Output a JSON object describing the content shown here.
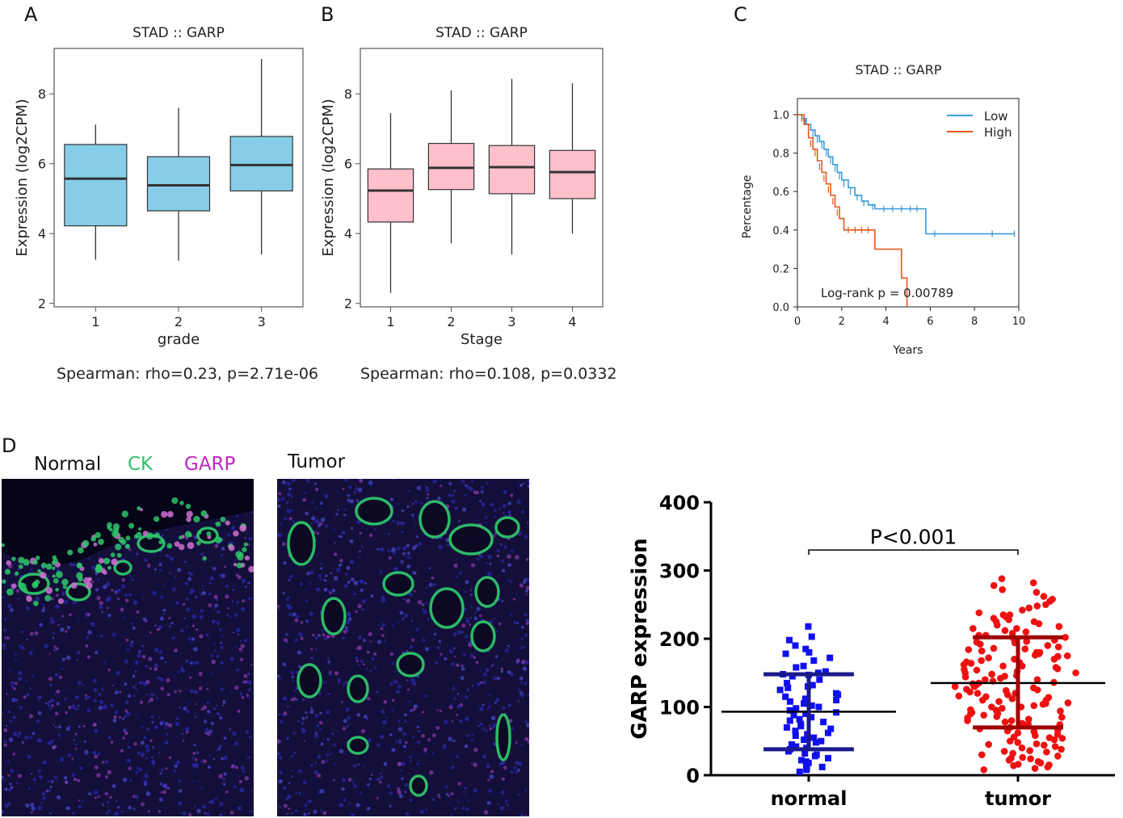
{
  "panels": {
    "a": "A",
    "b": "B",
    "c": "C",
    "d": "D"
  },
  "colors": {
    "box_a": "#87cde8",
    "box_b": "#ffc0cb",
    "km_low": "#3a9ad9",
    "km_high": "#e8581c",
    "ck": "#2ec46a",
    "garp": "#c026c0",
    "normal_pts": "#1010ee",
    "tumor_pts": "#ee1111"
  },
  "panel_a": {
    "caption": "Spearman: rho=0.23, p=2.71e-06",
    "chart_data": {
      "type": "box",
      "title": "STAD ::  GARP",
      "xlabel": "grade",
      "ylabel": "Expression (log2CPM)",
      "ylim": [
        1.9,
        9.3
      ],
      "yticks": [
        2,
        4,
        6,
        8
      ],
      "categories": [
        "1",
        "2",
        "3"
      ],
      "boxes": [
        {
          "min": 3.25,
          "q1": 4.22,
          "median": 5.57,
          "q3": 6.55,
          "max": 7.12
        },
        {
          "min": 3.22,
          "q1": 4.65,
          "median": 5.38,
          "q3": 6.2,
          "max": 7.6
        },
        {
          "min": 3.4,
          "q1": 5.22,
          "median": 5.96,
          "q3": 6.78,
          "max": 9.0
        }
      ]
    }
  },
  "panel_b": {
    "caption": "Spearman: rho=0.108, p=0.0332",
    "chart_data": {
      "type": "box",
      "title": "STAD :: GARP",
      "xlabel": "Stage",
      "ylabel": "Expression (log2CPM)",
      "ylim": [
        1.9,
        9.3
      ],
      "yticks": [
        2,
        4,
        6,
        8
      ],
      "categories": [
        "1",
        "2",
        "3",
        "4"
      ],
      "boxes": [
        {
          "min": 2.3,
          "q1": 4.33,
          "median": 5.23,
          "q3": 5.85,
          "max": 7.45
        },
        {
          "min": 3.72,
          "q1": 5.26,
          "median": 5.88,
          "q3": 6.58,
          "max": 8.1
        },
        {
          "min": 3.4,
          "q1": 5.14,
          "median": 5.9,
          "q3": 6.52,
          "max": 8.43
        },
        {
          "min": 4.0,
          "q1": 5.0,
          "median": 5.76,
          "q3": 6.38,
          "max": 8.3
        }
      ]
    }
  },
  "panel_c": {
    "chart_data": {
      "type": "line",
      "title": "STAD :: GARP",
      "xlabel": "Years",
      "ylabel": "Percentage",
      "xlim": [
        0,
        10
      ],
      "ylim": [
        0,
        1
      ],
      "xticks": [
        0,
        2,
        4,
        6,
        8,
        10
      ],
      "yticks": [
        "0.0",
        "0.2",
        "0.4",
        "0.6",
        "0.8",
        "1.0"
      ],
      "legend": [
        "Low",
        "High"
      ],
      "annotation": "Log-rank p = 0.00789",
      "series": [
        {
          "name": "Low",
          "steps": [
            [
              0,
              1.0
            ],
            [
              0.2,
              0.98
            ],
            [
              0.4,
              0.95
            ],
            [
              0.6,
              0.92
            ],
            [
              0.8,
              0.89
            ],
            [
              1.0,
              0.86
            ],
            [
              1.2,
              0.82
            ],
            [
              1.4,
              0.78
            ],
            [
              1.6,
              0.74
            ],
            [
              1.8,
              0.7
            ],
            [
              2.0,
              0.66
            ],
            [
              2.3,
              0.62
            ],
            [
              2.6,
              0.58
            ],
            [
              2.9,
              0.55
            ],
            [
              3.2,
              0.53
            ],
            [
              3.5,
              0.51
            ],
            [
              5.8,
              0.51
            ],
            [
              5.8,
              0.38
            ],
            [
              9.8,
              0.38
            ]
          ],
          "censor": [
            [
              0.35,
              0.96
            ],
            [
              0.7,
              0.9
            ],
            [
              0.9,
              0.87
            ],
            [
              1.1,
              0.84
            ],
            [
              1.3,
              0.8
            ],
            [
              1.5,
              0.76
            ],
            [
              1.7,
              0.72
            ],
            [
              1.9,
              0.68
            ],
            [
              2.1,
              0.64
            ],
            [
              2.4,
              0.6
            ],
            [
              2.7,
              0.57
            ],
            [
              3.0,
              0.54
            ],
            [
              3.4,
              0.52
            ],
            [
              3.9,
              0.51
            ],
            [
              4.3,
              0.51
            ],
            [
              4.7,
              0.51
            ],
            [
              5.1,
              0.51
            ],
            [
              5.4,
              0.51
            ],
            [
              6.2,
              0.38
            ],
            [
              8.8,
              0.38
            ],
            [
              9.8,
              0.38
            ]
          ]
        },
        {
          "name": "High",
          "steps": [
            [
              0,
              1.0
            ],
            [
              0.3,
              0.95
            ],
            [
              0.5,
              0.88
            ],
            [
              0.7,
              0.82
            ],
            [
              0.9,
              0.76
            ],
            [
              1.1,
              0.7
            ],
            [
              1.3,
              0.64
            ],
            [
              1.5,
              0.58
            ],
            [
              1.7,
              0.52
            ],
            [
              1.9,
              0.46
            ],
            [
              2.1,
              0.4
            ],
            [
              3.5,
              0.4
            ],
            [
              3.5,
              0.3
            ],
            [
              4.7,
              0.3
            ],
            [
              4.7,
              0.15
            ],
            [
              4.95,
              0.15
            ],
            [
              4.95,
              0.0
            ]
          ],
          "censor": [
            [
              0.2,
              0.98
            ],
            [
              0.6,
              0.85
            ],
            [
              0.8,
              0.8
            ],
            [
              1.0,
              0.73
            ],
            [
              1.2,
              0.67
            ],
            [
              1.4,
              0.61
            ],
            [
              1.6,
              0.55
            ],
            [
              1.8,
              0.49
            ],
            [
              2.3,
              0.4
            ],
            [
              2.6,
              0.4
            ],
            [
              2.9,
              0.4
            ],
            [
              3.2,
              0.4
            ]
          ]
        }
      ]
    }
  },
  "panel_d": {
    "micro_labels": {
      "normal": "Normal",
      "ck": "CK",
      "garp": "GARP",
      "tumor": "Tumor"
    },
    "chart_data": {
      "type": "scatter",
      "ylabel": "GARP expression",
      "ylim": [
        0,
        400
      ],
      "yticks": [
        0,
        100,
        200,
        300,
        400
      ],
      "categories": [
        "normal",
        "tumor"
      ],
      "annotation": "P<0.001",
      "summary": [
        {
          "mean": 93,
          "sd_low": 38,
          "sd_high": 148
        },
        {
          "mean": 135,
          "sd_low": 70,
          "sd_high": 202
        }
      ],
      "normal_values": [
        218,
        203,
        198,
        190,
        185,
        180,
        178,
        172,
        168,
        160,
        158,
        152,
        150,
        148,
        147,
        145,
        140,
        135,
        132,
        130,
        128,
        125,
        120,
        118,
        115,
        112,
        110,
        108,
        105,
        102,
        100,
        98,
        95,
        92,
        90,
        88,
        85,
        82,
        80,
        78,
        75,
        72,
        70,
        68,
        65,
        62,
        60,
        58,
        55,
        52,
        50,
        48,
        45,
        42,
        40,
        38,
        35,
        32,
        30,
        28,
        25,
        22,
        20,
        18,
        15,
        12,
        10,
        8,
        5
      ],
      "tumor_values": [
        288,
        282,
        278,
        272,
        268,
        262,
        258,
        255,
        250,
        248,
        245,
        242,
        238,
        235,
        232,
        230,
        228,
        225,
        222,
        220,
        218,
        215,
        212,
        210,
        208,
        205,
        202,
        200,
        198,
        196,
        194,
        192,
        190,
        188,
        186,
        184,
        182,
        180,
        178,
        176,
        174,
        172,
        170,
        168,
        166,
        164,
        162,
        160,
        158,
        156,
        154,
        152,
        150,
        148,
        146,
        144,
        142,
        140,
        138,
        136,
        134,
        132,
        130,
        128,
        126,
        124,
        122,
        120,
        118,
        116,
        114,
        112,
        110,
        108,
        106,
        104,
        102,
        100,
        98,
        96,
        94,
        92,
        90,
        88,
        86,
        84,
        82,
        80,
        78,
        76,
        74,
        72,
        70,
        68,
        66,
        64,
        62,
        60,
        58,
        56,
        54,
        52,
        50,
        48,
        46,
        44,
        42,
        40,
        38,
        36,
        34,
        32,
        30,
        28,
        26,
        24,
        22,
        20,
        18,
        16,
        14,
        12,
        10,
        8,
        160,
        170,
        150,
        140,
        130,
        180,
        120,
        110,
        100,
        90,
        80,
        175,
        165,
        155,
        145,
        135,
        125,
        115,
        105,
        95,
        85,
        75,
        65,
        55,
        45,
        35,
        25,
        15,
        185,
        195,
        205,
        215,
        225,
        235
      ]
    }
  }
}
